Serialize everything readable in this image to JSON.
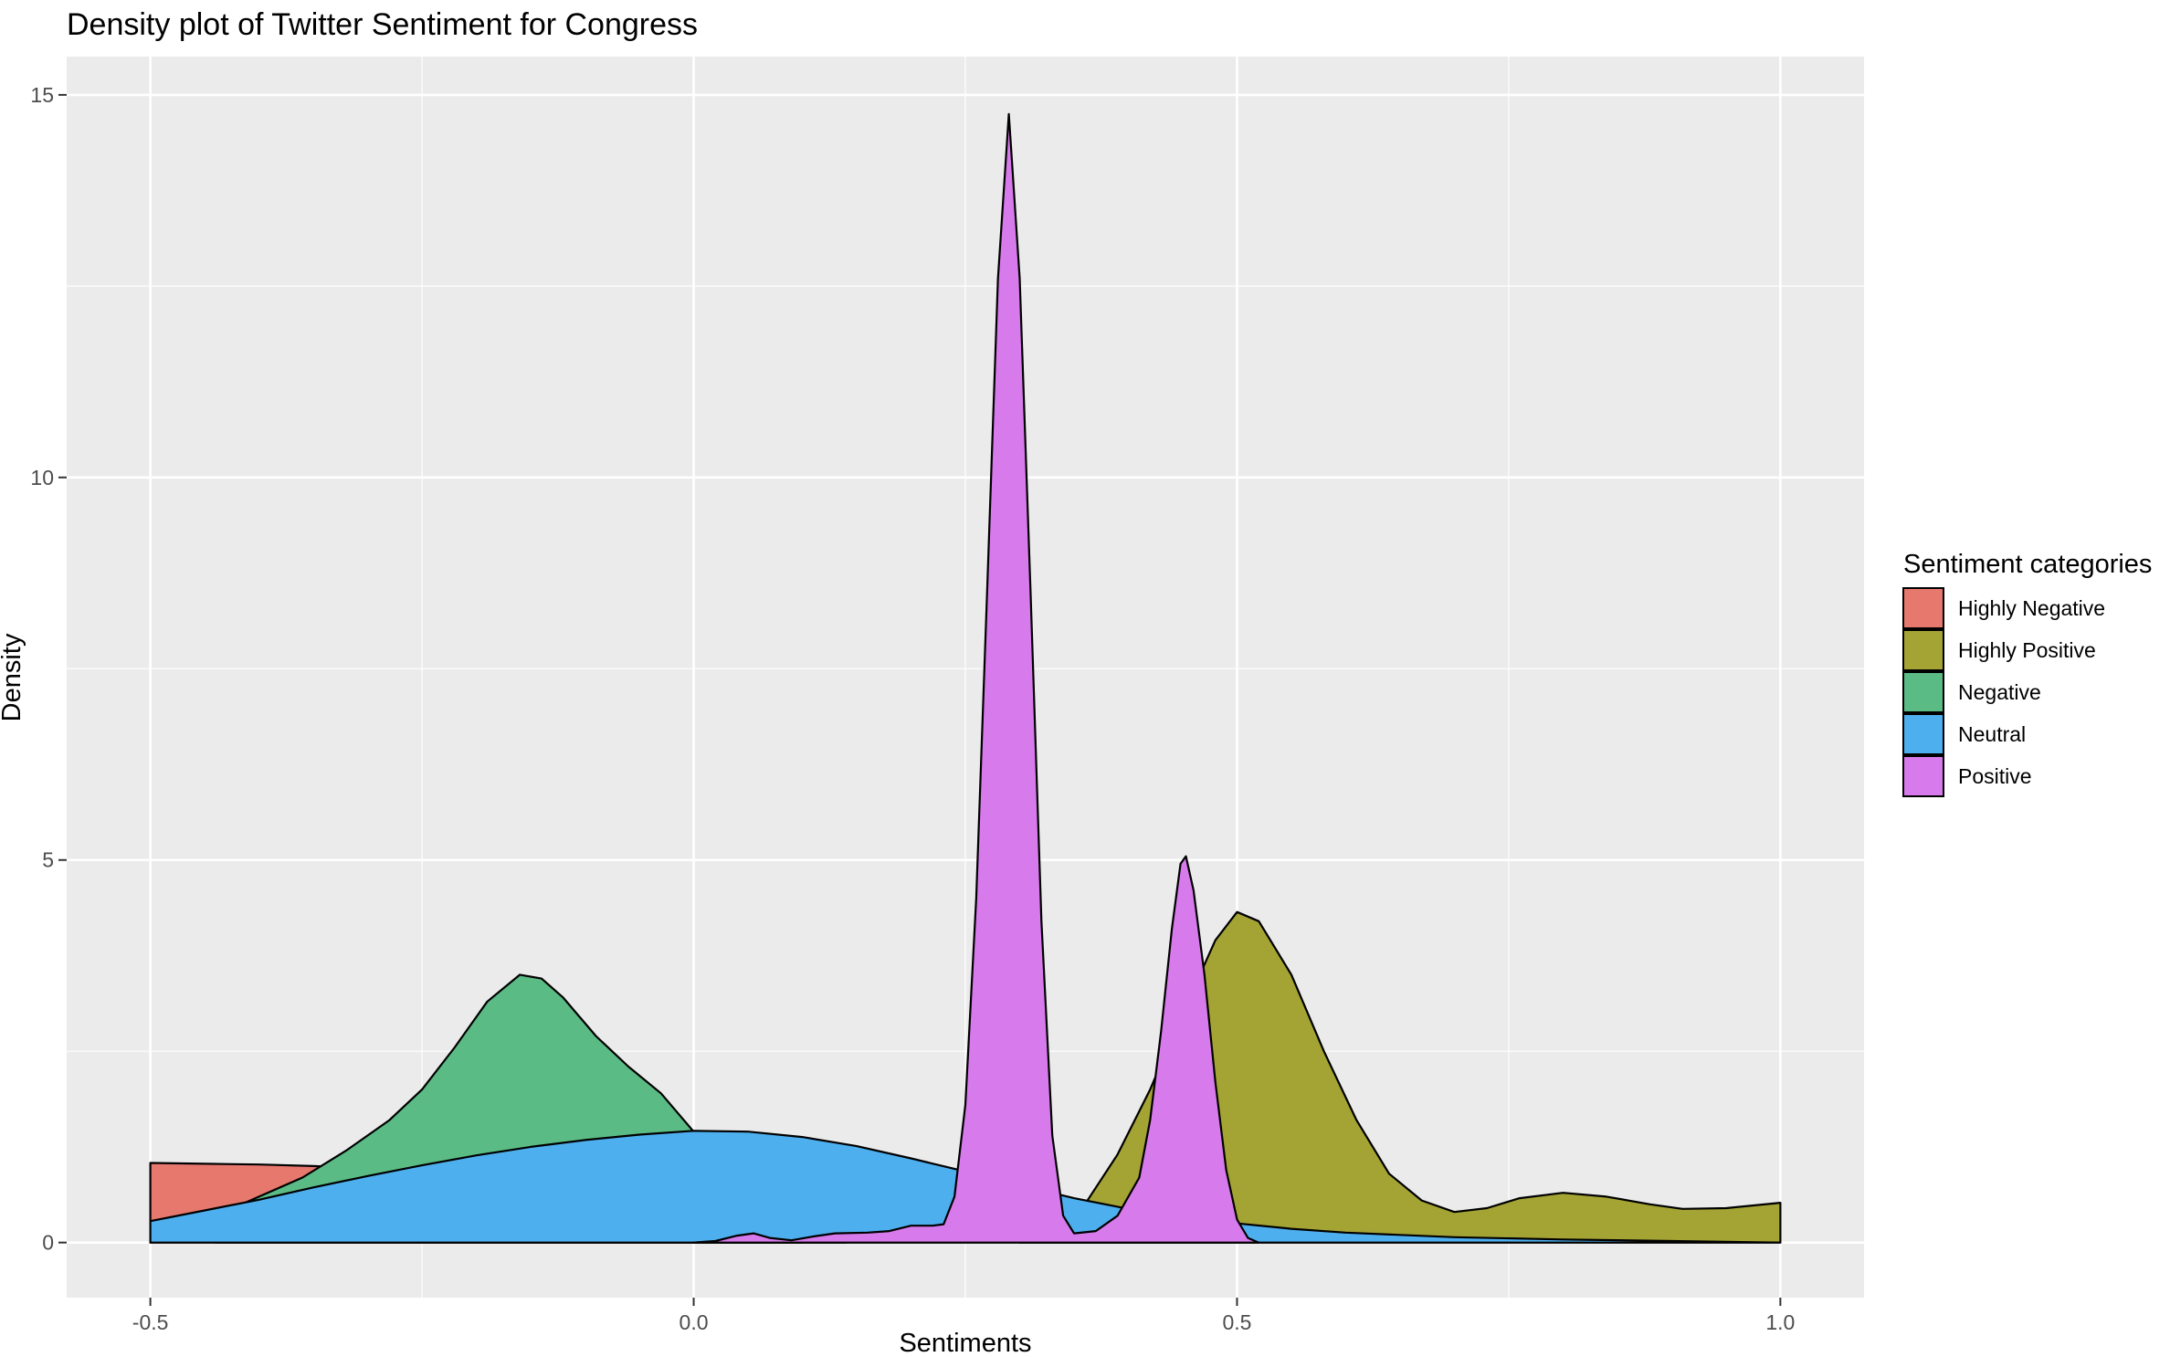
{
  "chart_data": {
    "type": "area",
    "title": "Density plot of Twitter Sentiment for Congress",
    "xlabel": "Sentiments",
    "ylabel": "Density",
    "xlim": [
      -0.577,
      1.077
    ],
    "ylim": [
      -0.72,
      15.5
    ],
    "x_ticks": [
      -0.5,
      0.0,
      0.5,
      1.0
    ],
    "x_tick_labels": [
      "-0.5",
      "0.0",
      "0.5",
      "1.0"
    ],
    "y_ticks": [
      0,
      5,
      10,
      15
    ],
    "y_tick_labels": [
      "0",
      "5",
      "10",
      "15"
    ],
    "grid": true,
    "legend_position": "right",
    "legend_title": "Sentiment categories",
    "series": [
      {
        "name": "Highly Negative",
        "color": "#E7786E",
        "points": [
          [
            -0.5,
            1.04
          ],
          [
            -0.45,
            1.03
          ],
          [
            -0.4,
            1.02
          ],
          [
            -0.35,
            1.0
          ],
          [
            -0.3,
            0.97
          ],
          [
            -0.25,
            0.93
          ],
          [
            -0.2,
            0.88
          ],
          [
            -0.15,
            0.8
          ],
          [
            -0.1,
            0.7
          ],
          [
            -0.05,
            0.55
          ],
          [
            0.0,
            0.38
          ],
          [
            0.03,
            0.25
          ],
          [
            0.06,
            0.12
          ],
          [
            0.08,
            0.05
          ],
          [
            0.1,
            0.0
          ]
        ]
      },
      {
        "name": "Highly Positive",
        "color": "#A4A435",
        "points": [
          [
            0.3,
            0.0
          ],
          [
            0.33,
            0.15
          ],
          [
            0.36,
            0.5
          ],
          [
            0.39,
            1.15
          ],
          [
            0.42,
            2.0
          ],
          [
            0.45,
            3.0
          ],
          [
            0.48,
            3.95
          ],
          [
            0.5,
            4.32
          ],
          [
            0.52,
            4.2
          ],
          [
            0.55,
            3.5
          ],
          [
            0.58,
            2.5
          ],
          [
            0.61,
            1.6
          ],
          [
            0.64,
            0.9
          ],
          [
            0.67,
            0.55
          ],
          [
            0.7,
            0.4
          ],
          [
            0.73,
            0.45
          ],
          [
            0.76,
            0.58
          ],
          [
            0.8,
            0.65
          ],
          [
            0.84,
            0.6
          ],
          [
            0.88,
            0.5
          ],
          [
            0.91,
            0.44
          ],
          [
            0.95,
            0.45
          ],
          [
            1.0,
            0.52
          ]
        ]
      },
      {
        "name": "Negative",
        "color": "#5BBB85",
        "points": [
          [
            -0.44,
            0.35
          ],
          [
            -0.4,
            0.6
          ],
          [
            -0.36,
            0.85
          ],
          [
            -0.32,
            1.2
          ],
          [
            -0.28,
            1.6
          ],
          [
            -0.25,
            2.0
          ],
          [
            -0.22,
            2.55
          ],
          [
            -0.19,
            3.15
          ],
          [
            -0.16,
            3.5
          ],
          [
            -0.14,
            3.45
          ],
          [
            -0.12,
            3.2
          ],
          [
            -0.09,
            2.7
          ],
          [
            -0.06,
            2.3
          ],
          [
            -0.03,
            1.95
          ],
          [
            0.0,
            1.45
          ],
          [
            0.03,
            0.95
          ],
          [
            0.06,
            0.55
          ],
          [
            0.09,
            0.28
          ],
          [
            0.12,
            0.08
          ],
          [
            0.14,
            0.0
          ]
        ]
      },
      {
        "name": "Neutral",
        "color": "#4EAFEF",
        "points": [
          [
            -0.5,
            0.28
          ],
          [
            -0.45,
            0.42
          ],
          [
            -0.4,
            0.56
          ],
          [
            -0.35,
            0.72
          ],
          [
            -0.3,
            0.87
          ],
          [
            -0.25,
            1.01
          ],
          [
            -0.2,
            1.14
          ],
          [
            -0.15,
            1.25
          ],
          [
            -0.1,
            1.34
          ],
          [
            -0.05,
            1.41
          ],
          [
            0.0,
            1.46
          ],
          [
            0.05,
            1.45
          ],
          [
            0.1,
            1.38
          ],
          [
            0.15,
            1.26
          ],
          [
            0.2,
            1.1
          ],
          [
            0.25,
            0.93
          ],
          [
            0.3,
            0.75
          ],
          [
            0.35,
            0.58
          ],
          [
            0.4,
            0.44
          ],
          [
            0.45,
            0.33
          ],
          [
            0.5,
            0.25
          ],
          [
            0.55,
            0.18
          ],
          [
            0.6,
            0.13
          ],
          [
            0.7,
            0.07
          ],
          [
            0.8,
            0.04
          ],
          [
            0.9,
            0.02
          ],
          [
            1.0,
            0.0
          ]
        ]
      },
      {
        "name": "Positive",
        "color": "#D77AEB",
        "points": [
          [
            0.0,
            0.0
          ],
          [
            0.02,
            0.02
          ],
          [
            0.04,
            0.09
          ],
          [
            0.055,
            0.12
          ],
          [
            0.07,
            0.06
          ],
          [
            0.09,
            0.03
          ],
          [
            0.11,
            0.08
          ],
          [
            0.13,
            0.12
          ],
          [
            0.16,
            0.13
          ],
          [
            0.18,
            0.15
          ],
          [
            0.2,
            0.22
          ],
          [
            0.22,
            0.22
          ],
          [
            0.23,
            0.24
          ],
          [
            0.24,
            0.6
          ],
          [
            0.25,
            1.8
          ],
          [
            0.26,
            4.5
          ],
          [
            0.27,
            8.5
          ],
          [
            0.28,
            12.6
          ],
          [
            0.29,
            14.75
          ],
          [
            0.3,
            12.6
          ],
          [
            0.31,
            8.5
          ],
          [
            0.32,
            4.2
          ],
          [
            0.33,
            1.4
          ],
          [
            0.34,
            0.35
          ],
          [
            0.35,
            0.12
          ],
          [
            0.37,
            0.15
          ],
          [
            0.39,
            0.35
          ],
          [
            0.41,
            0.85
          ],
          [
            0.42,
            1.6
          ],
          [
            0.43,
            2.75
          ],
          [
            0.44,
            4.1
          ],
          [
            0.448,
            4.95
          ],
          [
            0.453,
            5.05
          ],
          [
            0.46,
            4.6
          ],
          [
            0.47,
            3.5
          ],
          [
            0.48,
            2.1
          ],
          [
            0.49,
            0.95
          ],
          [
            0.5,
            0.3
          ],
          [
            0.51,
            0.06
          ],
          [
            0.52,
            0.0
          ]
        ]
      }
    ]
  }
}
